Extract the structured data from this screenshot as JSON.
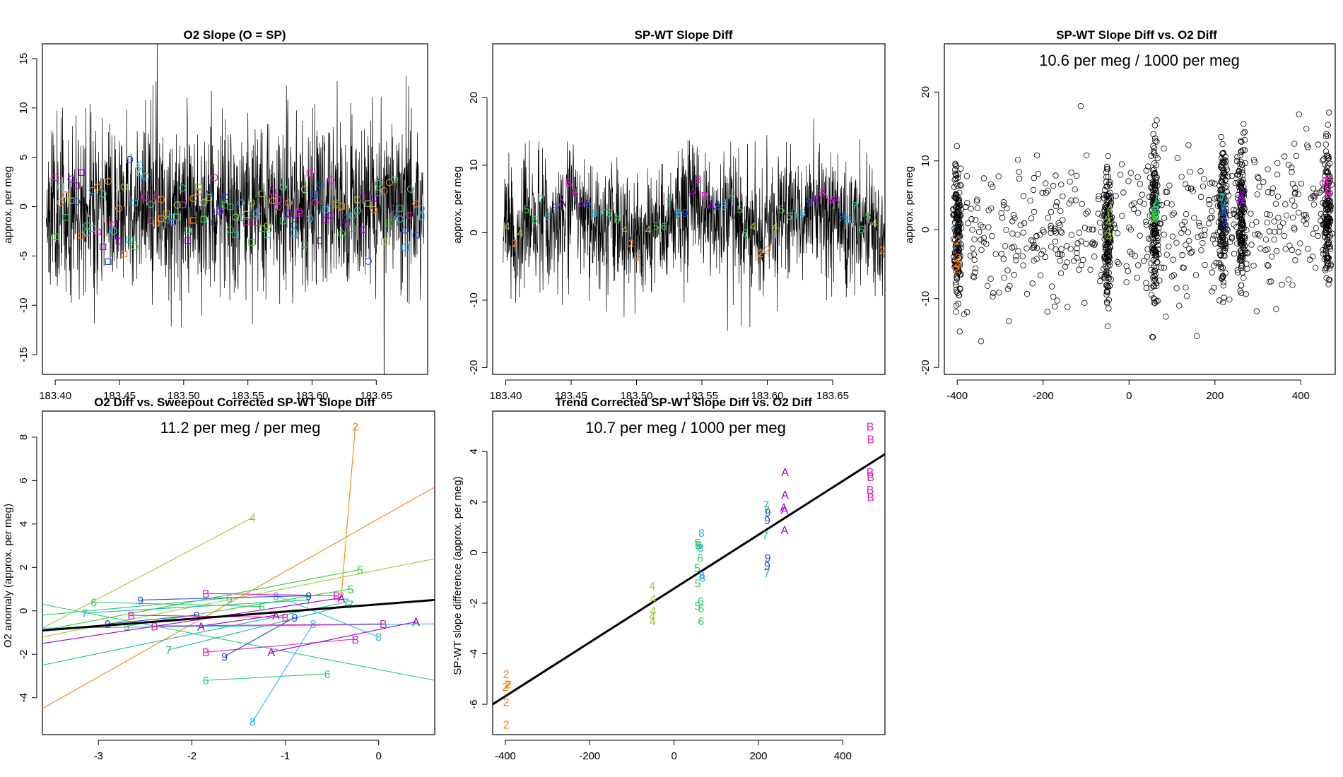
{
  "colors": {
    "sp2": "#ff7f0e",
    "sp4": "#9acd32",
    "sp5": "#32cd32",
    "sp6": "#2ecc71",
    "sp7": "#1abc9c",
    "sp8": "#29b6f6",
    "sp9": "#1f4fd8",
    "spA": "#9400d3",
    "spB": "#e020c0",
    "trace": "#000000"
  },
  "chart_data": [
    {
      "id": "p1",
      "type": "line",
      "title": "O2 Slope (O = SP)",
      "xlabel": "",
      "ylabel": "approx. per meg",
      "xlim": [
        183.39,
        183.69
      ],
      "ylim": [
        -17,
        16.5
      ],
      "xticks": [
        183.4,
        183.45,
        183.5,
        183.55,
        183.6,
        183.65
      ],
      "xtick_labels": [
        "183.40",
        "183.45",
        "183.50",
        "183.55",
        "183.60",
        "183.65"
      ],
      "yticks": [
        -15,
        -10,
        -5,
        0,
        5,
        10,
        15
      ],
      "ytick_labels": [
        "-15",
        "-10",
        "-5",
        "0",
        "5",
        "10",
        "15"
      ],
      "series": [
        {
          "name": "raw trace",
          "style": "dense-noise",
          "amplitude": 5,
          "seed": 11
        },
        {
          "name": "square markers",
          "marker": "square",
          "x_start": 183.4,
          "x_end": 183.685,
          "count": 70,
          "mean": -1,
          "spread": 2.2
        },
        {
          "name": "circle markers",
          "marker": "circle",
          "x_start": 183.4,
          "x_end": 183.685,
          "count": 70,
          "mean": 0.5,
          "spread": 2.0
        }
      ]
    },
    {
      "id": "p2",
      "type": "line",
      "title": "SP-WT Slope Diff",
      "xlabel": "",
      "ylabel": "approx. per meg",
      "xlim": [
        183.39,
        183.69
      ],
      "ylim": [
        -21,
        28
      ],
      "xticks": [
        183.4,
        183.45,
        183.5,
        183.55,
        183.6,
        183.65
      ],
      "xtick_labels": [
        "183.40",
        "183.45",
        "183.50",
        "183.55",
        "183.60",
        "183.65"
      ],
      "yticks": [
        -20,
        -10,
        0,
        10,
        20
      ],
      "ytick_labels": [
        "-20",
        "-10",
        "0",
        "10",
        "20"
      ],
      "series": [
        {
          "name": "raw trace",
          "style": "dense-noise",
          "amplitude": 6,
          "seed": 23,
          "pattern": "stepped"
        }
      ],
      "labels": [
        {
          "x": 183.407,
          "y": -1.5,
          "t": "2"
        },
        {
          "x": 183.401,
          "y": 1,
          "t": "4"
        },
        {
          "x": 183.411,
          "y": 0,
          "t": "4"
        },
        {
          "x": 183.416,
          "y": 3.5,
          "t": "5"
        },
        {
          "x": 183.422,
          "y": 2,
          "t": "6"
        },
        {
          "x": 183.427,
          "y": 5,
          "t": "7"
        },
        {
          "x": 183.432,
          "y": 2.5,
          "t": "8"
        },
        {
          "x": 183.438,
          "y": 3.8,
          "t": "9"
        },
        {
          "x": 183.443,
          "y": 4.5,
          "t": "A"
        },
        {
          "x": 183.448,
          "y": 7.5,
          "t": "B"
        },
        {
          "x": 183.453,
          "y": 6,
          "t": "B"
        },
        {
          "x": 183.458,
          "y": 4.3,
          "t": "A"
        },
        {
          "x": 183.463,
          "y": 4.3,
          "t": "9"
        },
        {
          "x": 183.468,
          "y": 3,
          "t": "8"
        },
        {
          "x": 183.474,
          "y": 3,
          "t": "7"
        },
        {
          "x": 183.479,
          "y": 3,
          "t": "6"
        },
        {
          "x": 183.485,
          "y": 2,
          "t": "5"
        },
        {
          "x": 183.491,
          "y": 0.5,
          "t": "4"
        },
        {
          "x": 183.496,
          "y": -1.5,
          "t": "2"
        },
        {
          "x": 183.501,
          "y": -3.5,
          "t": "2"
        },
        {
          "x": 183.509,
          "y": 0.5,
          "t": "4"
        },
        {
          "x": 183.515,
          "y": 1,
          "t": "5"
        },
        {
          "x": 183.521,
          "y": 1,
          "t": "6"
        },
        {
          "x": 183.525,
          "y": 4.5,
          "t": "7"
        },
        {
          "x": 183.532,
          "y": 3,
          "t": "8"
        },
        {
          "x": 183.537,
          "y": 3,
          "t": "9"
        },
        {
          "x": 183.543,
          "y": 6,
          "t": "A"
        },
        {
          "x": 183.547,
          "y": 8,
          "t": "B"
        },
        {
          "x": 183.552,
          "y": 5.5,
          "t": "B"
        },
        {
          "x": 183.557,
          "y": 4,
          "t": "A"
        },
        {
          "x": 183.562,
          "y": 4,
          "t": "9"
        },
        {
          "x": 183.567,
          "y": 4,
          "t": "8"
        },
        {
          "x": 183.573,
          "y": 5,
          "t": "7"
        },
        {
          "x": 183.579,
          "y": 3.5,
          "t": "5"
        },
        {
          "x": 183.583,
          "y": 0,
          "t": "6"
        },
        {
          "x": 183.589,
          "y": 1,
          "t": "4"
        },
        {
          "x": 183.595,
          "y": -3,
          "t": "2"
        },
        {
          "x": 183.6,
          "y": -2.5,
          "t": "2"
        },
        {
          "x": 183.606,
          "y": 1,
          "t": "4"
        },
        {
          "x": 183.611,
          "y": 3.5,
          "t": "5"
        },
        {
          "x": 183.617,
          "y": 2.5,
          "t": "6"
        },
        {
          "x": 183.622,
          "y": 2.5,
          "t": "7"
        },
        {
          "x": 183.627,
          "y": 3,
          "t": "8"
        },
        {
          "x": 183.632,
          "y": 4.5,
          "t": "9"
        },
        {
          "x": 183.637,
          "y": 5,
          "t": "A"
        },
        {
          "x": 183.642,
          "y": 6,
          "t": "B"
        },
        {
          "x": 183.648,
          "y": 5,
          "t": "B"
        },
        {
          "x": 183.652,
          "y": 5,
          "t": "A"
        },
        {
          "x": 183.657,
          "y": 2.5,
          "t": "9"
        },
        {
          "x": 183.662,
          "y": 2,
          "t": "8"
        },
        {
          "x": 183.667,
          "y": 4,
          "t": "7"
        },
        {
          "x": 183.672,
          "y": 0.5,
          "t": "6"
        },
        {
          "x": 183.677,
          "y": 2.5,
          "t": "5"
        },
        {
          "x": 183.682,
          "y": 1.5,
          "t": "4"
        },
        {
          "x": 183.688,
          "y": -2.5,
          "t": "2"
        }
      ]
    },
    {
      "id": "p3",
      "type": "scatter",
      "title": "SP-WT Slope Diff vs. O2 Diff",
      "annotation": "10.6 per meg / 1000 per meg",
      "xlabel": "",
      "ylabel": "approx. per meg",
      "xlim": [
        -430,
        480
      ],
      "ylim": [
        -21,
        27
      ],
      "xticks": [
        -400,
        -200,
        0,
        200,
        400
      ],
      "xtick_labels": [
        "-400",
        "-200",
        "0",
        "200",
        "400"
      ],
      "yticks": [
        -20,
        -10,
        0,
        10,
        20
      ],
      "ytick_labels": [
        "-20",
        "-10",
        "0",
        "10",
        "20"
      ],
      "clusters": [
        {
          "x": -400,
          "t": "2",
          "y": -3
        },
        {
          "x": -50,
          "t": "4",
          "y": 1
        },
        {
          "x": 60,
          "t": "5",
          "y": 1.5
        },
        {
          "x": 62,
          "t": "6",
          "y": 2.5
        },
        {
          "x": 218,
          "t": "7",
          "y": 4
        },
        {
          "x": 220,
          "t": "9",
          "y": 3
        },
        {
          "x": 262,
          "t": "A",
          "y": 5
        },
        {
          "x": 462,
          "t": "B",
          "y": 6
        }
      ],
      "scatter_seed": 37
    },
    {
      "id": "p4",
      "type": "line",
      "title": "O2 Diff vs. Sweepout Corrected SP-WT Slope Diff",
      "annotation": "11.2 per meg / per meg",
      "xlabel": "",
      "ylabel": "O2 anomaly (approx. per meg)",
      "xlim": [
        -3.6,
        0.6
      ],
      "ylim": [
        -5.7,
        9.2
      ],
      "xticks": [
        -3,
        -2,
        -1,
        0
      ],
      "xtick_labels": [
        "-3",
        "-2",
        "-1",
        "0"
      ],
      "yticks": [
        -4,
        -2,
        0,
        2,
        4,
        6,
        8
      ],
      "ytick_labels": [
        "-4",
        "-2",
        "0",
        "2",
        "4",
        "6",
        "8"
      ],
      "fit": {
        "x": [
          -3.6,
          0.6
        ],
        "y": [
          -0.9,
          0.5
        ]
      },
      "lines": [
        {
          "t": "2",
          "x": [
            -3.6,
            0.6
          ],
          "y": [
            -4.5,
            5.7
          ]
        },
        {
          "t": "2",
          "x": [
            -0.4,
            -0.25
          ],
          "y": [
            0.7,
            8.5
          ]
        },
        {
          "t": "4",
          "x": [
            -3.6,
            -1.35
          ],
          "y": [
            -0.8,
            4.3
          ]
        },
        {
          "t": "4",
          "x": [
            -3.6,
            0.6
          ],
          "y": [
            -1.2,
            2.4
          ]
        },
        {
          "t": "5",
          "x": [
            -3.6,
            -0.2
          ],
          "y": [
            -0.9,
            1.9
          ]
        },
        {
          "t": "5",
          "x": [
            -2.7,
            -0.3
          ],
          "y": [
            -0.7,
            1.0
          ]
        },
        {
          "t": "6",
          "x": [
            -3.6,
            -1.6
          ],
          "y": [
            -0.2,
            0.6
          ]
        },
        {
          "t": "6",
          "x": [
            -3.6,
            0.6
          ],
          "y": [
            0.3,
            -3.2
          ]
        },
        {
          "t": "6",
          "x": [
            -1.85,
            -0.55
          ],
          "y": [
            -3.2,
            -2.9
          ]
        },
        {
          "t": "6",
          "x": [
            -3.05,
            -1.25
          ],
          "y": [
            0.4,
            0.2
          ]
        },
        {
          "t": "7",
          "x": [
            -3.6,
            -0.35
          ],
          "y": [
            -2.5,
            0.4
          ]
        },
        {
          "t": "7",
          "x": [
            -3.15,
            -0.75
          ],
          "y": [
            -0.1,
            0.5
          ]
        },
        {
          "t": "7",
          "x": [
            -2.25,
            -0.3
          ],
          "y": [
            -1.8,
            0.3
          ]
        },
        {
          "t": "8",
          "x": [
            -3.6,
            0.6
          ],
          "y": [
            -0.8,
            -0.6
          ]
        },
        {
          "t": "8",
          "x": [
            -1.35,
            -0.7
          ],
          "y": [
            -5.1,
            -0.6
          ]
        },
        {
          "t": "8",
          "x": [
            -1.1,
            0.0
          ],
          "y": [
            0.7,
            -1.2
          ]
        },
        {
          "t": "9",
          "x": [
            -2.9,
            -1.95
          ],
          "y": [
            -0.6,
            -0.2
          ]
        },
        {
          "t": "9",
          "x": [
            -2.55,
            -0.75
          ],
          "y": [
            0.5,
            0.7
          ]
        },
        {
          "t": "9",
          "x": [
            -1.65,
            -0.9
          ],
          "y": [
            -2.1,
            -0.3
          ]
        },
        {
          "t": "A",
          "x": [
            -1.9,
            -1.1
          ],
          "y": [
            -0.7,
            -0.2
          ]
        },
        {
          "t": "A",
          "x": [
            -1.15,
            0.4
          ],
          "y": [
            -1.9,
            -0.5
          ]
        },
        {
          "t": "A",
          "x": [
            -3.6,
            -0.4
          ],
          "y": [
            -1.5,
            0.6
          ]
        },
        {
          "t": "B",
          "x": [
            -2.65,
            -1.0
          ],
          "y": [
            -0.2,
            -0.3
          ]
        },
        {
          "t": "B",
          "x": [
            -1.85,
            -0.45
          ],
          "y": [
            0.8,
            0.7
          ]
        },
        {
          "t": "B",
          "x": [
            -1.85,
            -0.25
          ],
          "y": [
            -1.9,
            -1.3
          ]
        },
        {
          "t": "B",
          "x": [
            -2.4,
            0.05
          ],
          "y": [
            -0.7,
            -0.6
          ]
        }
      ]
    },
    {
      "id": "p5",
      "type": "scatter",
      "title": "Trend Corrected SP-WT Slope Diff vs. O2 Diff",
      "annotation": "10.7 per meg / 1000 per meg",
      "xlabel": "",
      "ylabel": "SP-WT slope difference (approx. per meg)",
      "xlim": [
        -430,
        500
      ],
      "ylim": [
        -7.2,
        5.6
      ],
      "xticks": [
        -400,
        -200,
        0,
        200,
        400
      ],
      "xtick_labels": [
        "-400",
        "-200",
        "0",
        "200",
        "400"
      ],
      "yticks": [
        -6,
        -4,
        -2,
        0,
        2,
        4
      ],
      "ytick_labels": [
        "-6",
        "-4",
        "-2",
        "0",
        "2",
        "4"
      ],
      "fit": {
        "x": [
          -430,
          500
        ],
        "y": [
          -6.0,
          3.9
        ]
      },
      "points": [
        {
          "x": -398,
          "y": -4.8,
          "t": "2"
        },
        {
          "x": -396,
          "y": -5.2,
          "t": "2"
        },
        {
          "x": -400,
          "y": -5.3,
          "t": "2"
        },
        {
          "x": -398,
          "y": -5.9,
          "t": "2"
        },
        {
          "x": -398,
          "y": -6.8,
          "t": "2"
        },
        {
          "x": -392,
          "y": -5.2,
          "t": "2"
        },
        {
          "x": -52,
          "y": -1.3,
          "t": "4"
        },
        {
          "x": -50,
          "y": -1.8,
          "t": "4"
        },
        {
          "x": -50,
          "y": -2.3,
          "t": "4"
        },
        {
          "x": -52,
          "y": -2.5,
          "t": "4"
        },
        {
          "x": -51,
          "y": -2.7,
          "t": "4"
        },
        {
          "x": 56,
          "y": 0.4,
          "t": "5"
        },
        {
          "x": 57,
          "y": 0.3,
          "t": "5"
        },
        {
          "x": 55,
          "y": -0.6,
          "t": "5"
        },
        {
          "x": 56,
          "y": -1.2,
          "t": "5"
        },
        {
          "x": 56,
          "y": -2.1,
          "t": "5"
        },
        {
          "x": 60,
          "y": 0.3,
          "t": "6"
        },
        {
          "x": 62,
          "y": -0.2,
          "t": "6"
        },
        {
          "x": 63,
          "y": -1.9,
          "t": "6"
        },
        {
          "x": 64,
          "y": -2.2,
          "t": "6"
        },
        {
          "x": 64,
          "y": -2.7,
          "t": "6"
        },
        {
          "x": 218,
          "y": 1.9,
          "t": "7"
        },
        {
          "x": 220,
          "y": 1.7,
          "t": "7"
        },
        {
          "x": 216,
          "y": 0.7,
          "t": "7"
        },
        {
          "x": 220,
          "y": -0.8,
          "t": "7"
        },
        {
          "x": 65,
          "y": 0.8,
          "t": "8"
        },
        {
          "x": 63,
          "y": 0.2,
          "t": "8"
        },
        {
          "x": 66,
          "y": -0.9,
          "t": "8"
        },
        {
          "x": 67,
          "y": -1.0,
          "t": "8"
        },
        {
          "x": 222,
          "y": 1.6,
          "t": "9"
        },
        {
          "x": 221,
          "y": 1.3,
          "t": "9"
        },
        {
          "x": 222,
          "y": -0.2,
          "t": "9"
        },
        {
          "x": 221,
          "y": -0.5,
          "t": "9"
        },
        {
          "x": 263,
          "y": 3.2,
          "t": "A"
        },
        {
          "x": 263,
          "y": 2.3,
          "t": "A"
        },
        {
          "x": 260,
          "y": 1.8,
          "t": "A"
        },
        {
          "x": 262,
          "y": 1.7,
          "t": "A"
        },
        {
          "x": 262,
          "y": 0.9,
          "t": "A"
        },
        {
          "x": 465,
          "y": 5.0,
          "t": "B"
        },
        {
          "x": 466,
          "y": 4.5,
          "t": "B"
        },
        {
          "x": 465,
          "y": 3.2,
          "t": "B"
        },
        {
          "x": 466,
          "y": 3.0,
          "t": "B"
        },
        {
          "x": 465,
          "y": 2.5,
          "t": "B"
        },
        {
          "x": 466,
          "y": 2.2,
          "t": "B"
        }
      ]
    }
  ]
}
